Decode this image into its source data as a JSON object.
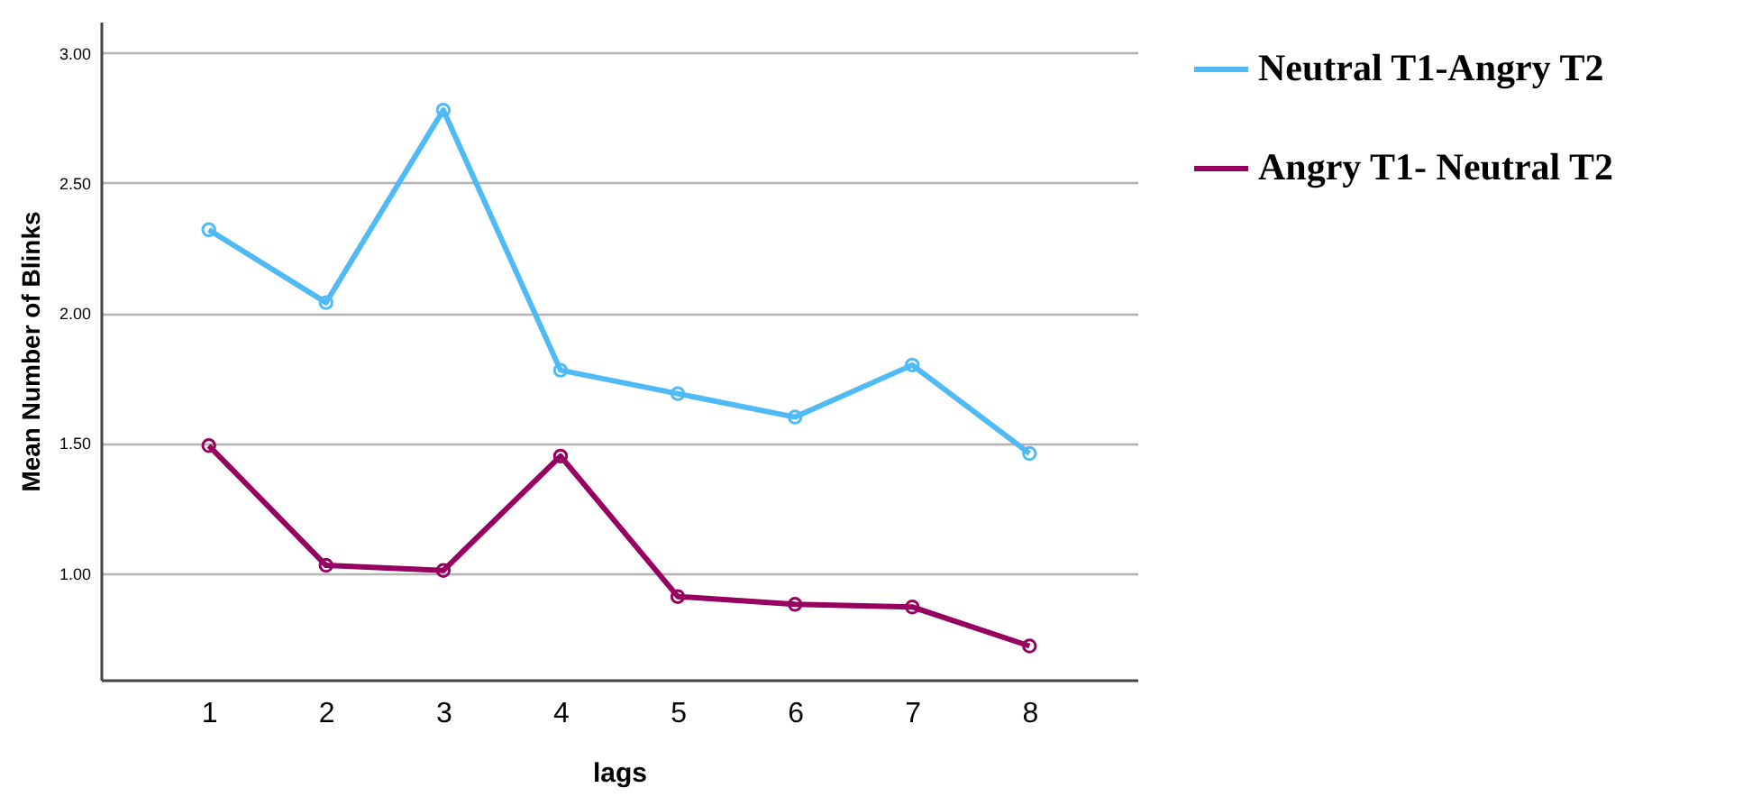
{
  "chart_data": {
    "type": "line",
    "xlabel": "lags",
    "ylabel": "Mean Number of Blinks",
    "categories": [
      "1",
      "2",
      "3",
      "4",
      "5",
      "6",
      "7",
      "8"
    ],
    "series": [
      {
        "name": "Neutral T1-Angry T2",
        "color": "#4fbaf5",
        "values": [
          2.32,
          2.04,
          2.78,
          1.78,
          1.69,
          1.6,
          1.8,
          1.46
        ]
      },
      {
        "name": "Angry T1- Neutral T2",
        "color": "#960060",
        "values": [
          1.49,
          1.03,
          1.01,
          1.45,
          0.91,
          0.88,
          0.87,
          0.72
        ]
      }
    ],
    "ylim": [
      0.59,
      3.12
    ],
    "yticks": [
      {
        "value": 1,
        "label": "1.00"
      },
      {
        "value": 1.5,
        "label": "1.50"
      },
      {
        "value": 2,
        "label": "2.00"
      },
      {
        "value": 2.5,
        "label": "2.50"
      },
      {
        "value": 3,
        "label": "3.00"
      }
    ],
    "grid": "y",
    "legend": "right",
    "marker": "circle",
    "line_style": "solid"
  }
}
